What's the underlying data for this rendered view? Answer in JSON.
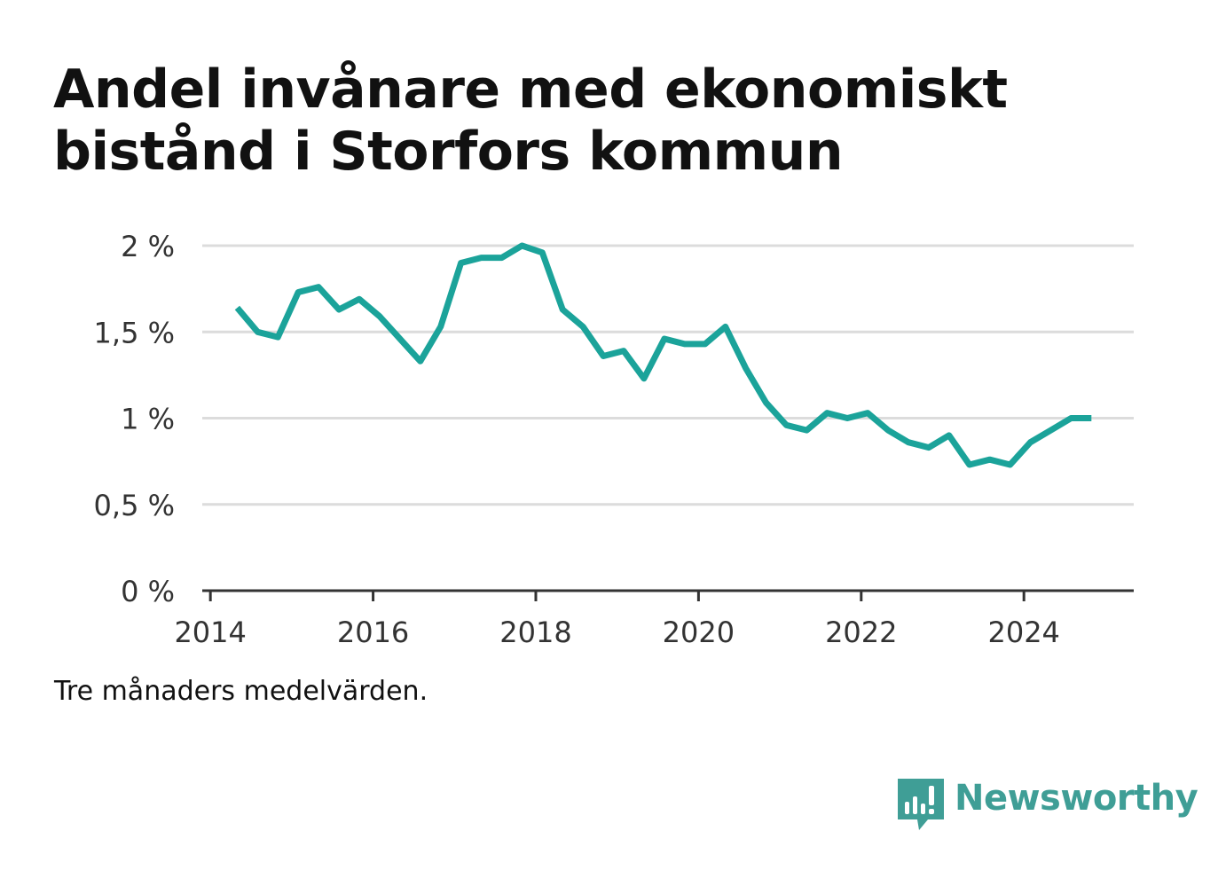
{
  "title": "Andel invånare med ekonomiskt bistånd i Storfors kommun",
  "note": "Tre månaders medelvärden.",
  "brand": {
    "name": "Newsworthy",
    "icon": "newsworthy-logo-icon",
    "color": "#3f9e96"
  },
  "chart_data": {
    "type": "line",
    "title": "Andel invånare med ekonomiskt bistånd i Storfors kommun",
    "xlabel": "",
    "ylabel": "",
    "x_ticks": [
      "2014",
      "2016",
      "2018",
      "2020",
      "2022",
      "2024"
    ],
    "y_ticks": [
      "0 %",
      "0,5 %",
      "1 %",
      "1,5 %",
      "2 %"
    ],
    "xlim": [
      2013.9,
      2025.35
    ],
    "ylim": [
      0,
      2
    ],
    "grid": true,
    "legend": "none",
    "line_color": "#1ba39a",
    "series": [
      {
        "x": [
          2014.33,
          2014.58,
          2014.83,
          2015.08,
          2015.33,
          2015.58,
          2015.83,
          2016.08,
          2016.33,
          2016.58,
          2016.83,
          2017.08,
          2017.33,
          2017.58,
          2017.83,
          2018.08,
          2018.33,
          2018.58,
          2018.83,
          2019.08,
          2019.33,
          2019.58,
          2019.83,
          2020.08,
          2020.33,
          2020.58,
          2020.83,
          2021.08,
          2021.33,
          2021.58,
          2021.83,
          2022.08,
          2022.33,
          2022.58,
          2022.83,
          2023.08,
          2023.33,
          2023.58,
          2023.83,
          2024.08,
          2024.33,
          2024.58,
          2024.83
        ],
        "y": [
          1.64,
          1.5,
          1.47,
          1.73,
          1.76,
          1.63,
          1.69,
          1.59,
          1.46,
          1.33,
          1.53,
          1.9,
          1.93,
          1.93,
          2.0,
          1.96,
          1.63,
          1.53,
          1.36,
          1.39,
          1.23,
          1.46,
          1.43,
          1.43,
          1.53,
          1.29,
          1.09,
          0.96,
          0.93,
          1.03,
          1.0,
          1.03,
          0.93,
          0.86,
          0.83,
          0.9,
          0.73,
          0.76,
          0.73,
          0.86,
          0.93,
          1.0,
          1.0
        ]
      }
    ]
  }
}
